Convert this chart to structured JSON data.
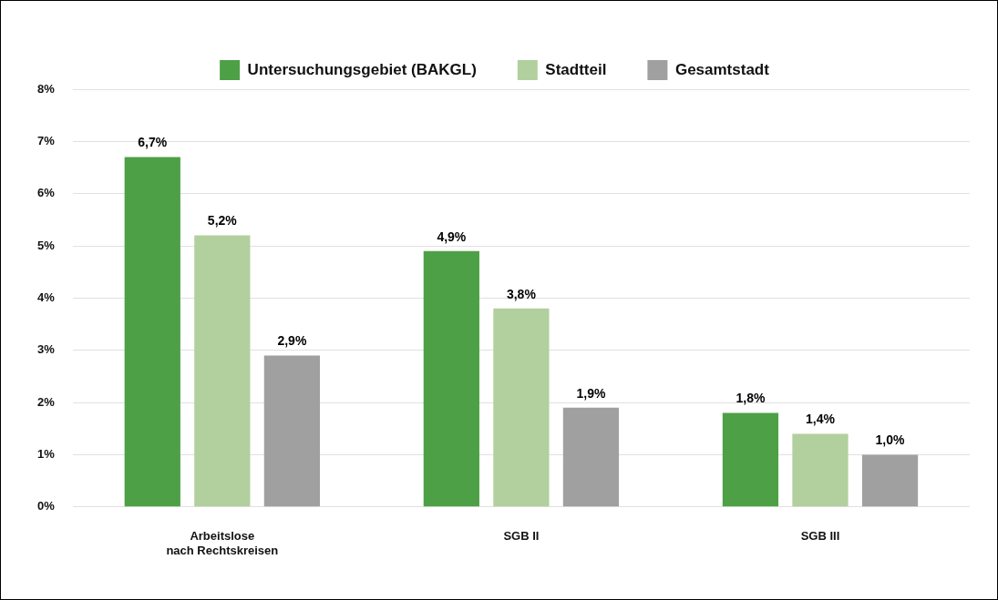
{
  "chart_data": {
    "type": "bar",
    "categories": [
      "Arbeitslose nach Rechtskreisen",
      "SGB II",
      "SGB III"
    ],
    "series": [
      {
        "name": "Untersuchungsgebiet (BAKGL)",
        "color": "#4ea046",
        "values": [
          6.7,
          4.9,
          1.8
        ],
        "value_labels": [
          "6,7%",
          "4,9%",
          "1,8%"
        ]
      },
      {
        "name": "Stadtteil",
        "color": "#b2cf9e",
        "values": [
          5.2,
          3.8,
          1.4
        ],
        "value_labels": [
          "5,2%",
          "3,8%",
          "1,4%"
        ]
      },
      {
        "name": "Gesamtstadt",
        "color": "#a0a0a0",
        "values": [
          2.9,
          1.9,
          1.0
        ],
        "value_labels": [
          "2,9%",
          "1,9%",
          "1,0%"
        ]
      }
    ],
    "ylim": [
      0,
      8
    ],
    "yticks": [
      {
        "value": 0,
        "label": "0%"
      },
      {
        "value": 1,
        "label": "1%"
      },
      {
        "value": 2,
        "label": "2%"
      },
      {
        "value": 3,
        "label": "3%"
      },
      {
        "value": 4,
        "label": "4%"
      },
      {
        "value": 5,
        "label": "5%"
      },
      {
        "value": 6,
        "label": "6%"
      },
      {
        "value": 7,
        "label": "7%"
      },
      {
        "value": 8,
        "label": "8%"
      }
    ],
    "grid": "y",
    "legend": "top"
  }
}
